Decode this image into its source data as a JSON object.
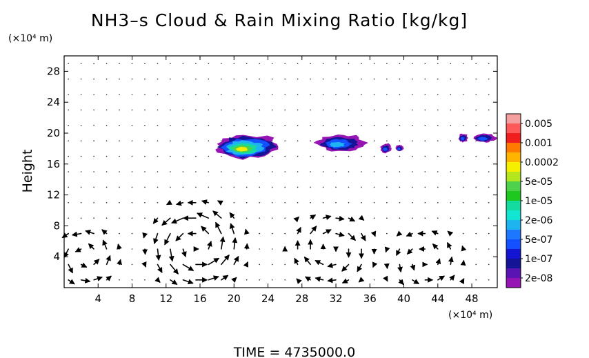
{
  "chart_data": {
    "type": "heatmap",
    "title": "NH3–s Cloud & Rain Mixing Ratio [kg/kg]",
    "ylabel": "Height",
    "x_unit": "(×10⁴ m)",
    "y_unit": "(×10⁴ m)",
    "footer": "TIME  =  4735000.0",
    "xlim": [
      0,
      51
    ],
    "ylim": [
      0,
      30
    ],
    "x_ticks": [
      4,
      8,
      12,
      16,
      20,
      24,
      28,
      32,
      36,
      40,
      44,
      48
    ],
    "x_tick_labels": [
      "4",
      "8",
      "12",
      "16",
      "20",
      "24",
      "28",
      "32",
      "36",
      "40",
      "44",
      "48"
    ],
    "y_ticks": [
      4,
      8,
      12,
      16,
      20,
      24,
      28
    ],
    "y_tick_labels": [
      "4",
      "8",
      "12",
      "16",
      "20",
      "24",
      "28"
    ],
    "colorbar": {
      "labels": [
        "0.005",
        "0.001",
        "0.0002",
        "5e-05",
        "1e-05",
        "2e-06",
        "5e-07",
        "1e-07",
        "2e-08"
      ],
      "colors": [
        "#f5a0a0",
        "#ff5a5a",
        "#f01e1e",
        "#ff7a00",
        "#ffb400",
        "#f5f000",
        "#b4e61e",
        "#4ed24e",
        "#1ec81e",
        "#14dca0",
        "#12e6d2",
        "#1eb4f0",
        "#1e78ff",
        "#1450ff",
        "#1414d2",
        "#141496",
        "#5a14b4",
        "#9614b4"
      ]
    },
    "cloud_patches": [
      {
        "x": 17.6,
        "y": 16.6,
        "w": 7.9,
        "h": 3.3,
        "max_level": 6
      },
      {
        "x": 29.6,
        "y": 17.6,
        "w": 6.0,
        "h": 2.3,
        "max_level": 3
      },
      {
        "x": 37.2,
        "y": 17.4,
        "w": 1.4,
        "h": 1.3,
        "max_level": 2
      },
      {
        "x": 39.0,
        "y": 17.6,
        "w": 1.0,
        "h": 0.9,
        "max_level": 2
      },
      {
        "x": 46.4,
        "y": 18.8,
        "w": 1.2,
        "h": 1.2,
        "max_level": 2
      },
      {
        "x": 48.0,
        "y": 18.8,
        "w": 3.0,
        "h": 1.2,
        "max_level": 2
      }
    ],
    "wind_field": {
      "dx": 1.5,
      "dy": 2.0,
      "vortices": [
        {
          "x": 2.5,
          "y": 4.0,
          "r": 5.0,
          "strength": 1.0
        },
        {
          "x": 15.5,
          "y": 5.5,
          "r": 7.0,
          "strength": 1.3
        },
        {
          "x": 31.5,
          "y": 5.0,
          "r": 6.0,
          "strength": -1.0
        },
        {
          "x": 42.5,
          "y": 3.5,
          "r": 5.5,
          "strength": 0.8
        }
      ],
      "jets": [
        {
          "y": 12,
          "u": -1.2
        },
        {
          "y": 18,
          "u": -0.9
        },
        {
          "y": 16,
          "u": 0.7
        }
      ],
      "calm_above": 21
    }
  }
}
